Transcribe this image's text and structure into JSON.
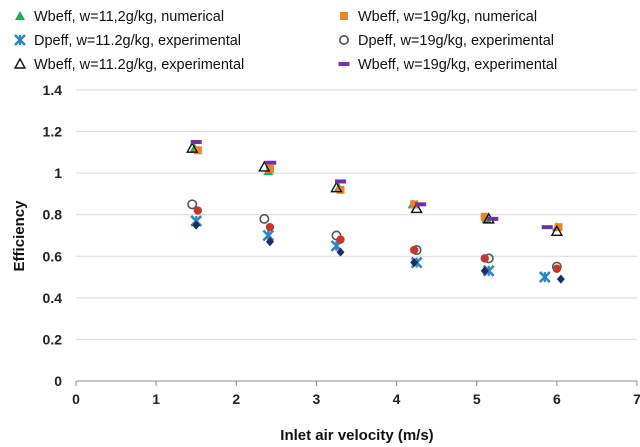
{
  "chart_data": {
    "type": "scatter",
    "title": "",
    "xlabel": "Inlet air velocity (m/s)",
    "ylabel": "Efficiency",
    "xlim": [
      0,
      7
    ],
    "ylim": [
      0,
      1.4
    ],
    "x_ticks": [
      "0",
      "1",
      "2",
      "3",
      "4",
      "5",
      "6",
      "7"
    ],
    "y_ticks": [
      "0",
      "0.2",
      "0.4",
      "0.6",
      "0.8",
      "1",
      "1.2",
      "1.4"
    ],
    "grid": "horizontal",
    "legend_position": "top",
    "colors": {
      "green": "#1fae5e",
      "orange": "#e8852a",
      "blue": "#2e86c1",
      "gray": "#555555",
      "black": "#111111",
      "purple": "#7030a0",
      "red": "#c0392b",
      "navy": "#1f2d5a"
    },
    "series": [
      {
        "name": "Wbeff, w=11,2g/kg, numerical",
        "marker": "triangle-filled",
        "color": "#1fae5e",
        "show_in_legend": true,
        "points": [
          [
            1.48,
            1.12
          ],
          [
            2.4,
            1.01
          ],
          [
            3.28,
            0.93
          ],
          [
            4.2,
            0.85
          ],
          [
            5.12,
            0.78
          ],
          [
            6.0,
            0.74
          ]
        ]
      },
      {
        "name": "Wbeff, w=19g/kg, numerical",
        "marker": "square-filled",
        "color": "#e8852a",
        "show_in_legend": true,
        "points": [
          [
            1.52,
            1.11
          ],
          [
            2.42,
            1.02
          ],
          [
            3.3,
            0.92
          ],
          [
            4.22,
            0.85
          ],
          [
            5.1,
            0.79
          ],
          [
            6.02,
            0.74
          ]
        ]
      },
      {
        "name": "Dpeff, w=11.2g/kg, experimental",
        "marker": "asterisk",
        "color": "#2e86c1",
        "show_in_legend": true,
        "points": [
          [
            1.5,
            0.77
          ],
          [
            2.4,
            0.7
          ],
          [
            3.25,
            0.65
          ],
          [
            4.25,
            0.57
          ],
          [
            5.15,
            0.53
          ],
          [
            5.85,
            0.5
          ]
        ]
      },
      {
        "name": "Dpeff, w=19g/kg, experimental",
        "marker": "circle-open",
        "color": "#555555",
        "show_in_legend": true,
        "points": [
          [
            1.45,
            0.85
          ],
          [
            2.35,
            0.78
          ],
          [
            3.25,
            0.7
          ],
          [
            4.25,
            0.63
          ],
          [
            5.15,
            0.59
          ],
          [
            6.0,
            0.55
          ]
        ]
      },
      {
        "name": "Wbeff, w=11.2g/kg, experimental",
        "marker": "triangle-open",
        "color": "#111111",
        "show_in_legend": true,
        "points": [
          [
            1.45,
            1.12
          ],
          [
            2.35,
            1.03
          ],
          [
            3.25,
            0.93
          ],
          [
            4.25,
            0.83
          ],
          [
            5.15,
            0.78
          ],
          [
            6.0,
            0.72
          ]
        ]
      },
      {
        "name": "Wbeff, w=19g/kg, experimental",
        "marker": "dash",
        "color": "#7030a0",
        "show_in_legend": true,
        "points": [
          [
            1.5,
            1.15
          ],
          [
            2.43,
            1.05
          ],
          [
            3.3,
            0.96
          ],
          [
            4.3,
            0.85
          ],
          [
            5.2,
            0.78
          ],
          [
            5.88,
            0.74
          ]
        ]
      },
      {
        "name": "",
        "marker": "circle-filled",
        "color": "#c0392b",
        "show_in_legend": false,
        "points": [
          [
            1.52,
            0.82
          ],
          [
            2.42,
            0.74
          ],
          [
            3.3,
            0.68
          ],
          [
            4.22,
            0.63
          ],
          [
            5.1,
            0.59
          ],
          [
            6.0,
            0.54
          ]
        ]
      },
      {
        "name": "",
        "marker": "diamond-filled",
        "color": "#1f2d5a",
        "show_in_legend": false,
        "points": [
          [
            1.5,
            0.75
          ],
          [
            2.42,
            0.67
          ],
          [
            3.3,
            0.62
          ],
          [
            4.22,
            0.57
          ],
          [
            5.1,
            0.53
          ],
          [
            6.05,
            0.49
          ]
        ]
      }
    ]
  }
}
